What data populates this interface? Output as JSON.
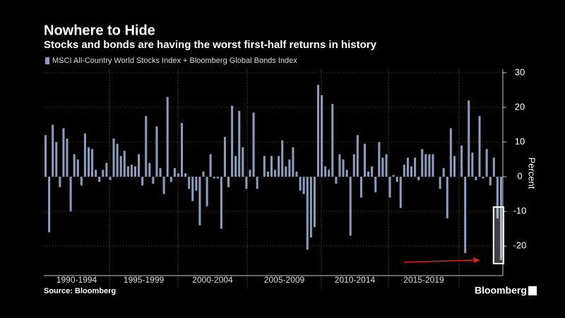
{
  "chart_data": {
    "type": "bar",
    "title": "Nowhere to Hide",
    "subtitle": "Stocks and bonds are having the worst first-half returns in history",
    "legend": "MSCI All-Country World Stocks Index + Bloomberg Global Bonds Index",
    "ylabel": "Percent",
    "source": "Source: Bloomberg",
    "brand": "Bloomberg",
    "color": "#8d9cbb",
    "groups": [
      "1990-1994",
      "1995-1999",
      "2000-2004",
      "2005-2009",
      "2010-2014",
      "2015-2019"
    ],
    "values": [
      12,
      -16,
      15,
      10,
      -3,
      14,
      11,
      -10,
      6.5,
      5,
      -2.5,
      12.5,
      8.5,
      8,
      2,
      -1.5,
      2,
      4,
      -1,
      11,
      9.5,
      6,
      7.5,
      3,
      3.5,
      3,
      6.5,
      -2.5,
      17.5,
      4,
      -2,
      14.5,
      2.5,
      -5,
      23,
      -1.5,
      2.5,
      1,
      15.5,
      1,
      -3.5,
      -7,
      -4,
      -14,
      1.5,
      -8.5,
      6.5,
      -0.5,
      -0.5,
      -15,
      11.5,
      -3,
      20.5,
      6,
      19,
      8.5,
      -3.5,
      2,
      18.5,
      -3.5,
      0,
      6,
      1.5,
      6,
      2,
      6,
      10.5,
      3,
      5,
      8.5,
      1.5,
      -4,
      -5,
      -21,
      -17.5,
      -14.5,
      26.5,
      23.5,
      3,
      2,
      21,
      -2,
      6.5,
      5,
      2,
      -17,
      6.5,
      12,
      -6,
      9.5,
      1.5,
      3,
      -4.5,
      10,
      5.5,
      6.5,
      -6,
      0.5,
      -1.5,
      -9,
      3.5,
      5.5,
      3,
      5.5,
      -1,
      8,
      6.5,
      6.5,
      6.5,
      0,
      -3.5,
      2.5,
      -12,
      14,
      6,
      0,
      9,
      -22,
      22,
      7,
      -1,
      17.5,
      -0.5,
      8,
      -2.5,
      5.5,
      -12,
      -24
    ],
    "ylim": [
      -28.5,
      31
    ],
    "yticks": [
      -20,
      -10,
      0,
      10,
      20,
      30
    ],
    "grid": true
  }
}
